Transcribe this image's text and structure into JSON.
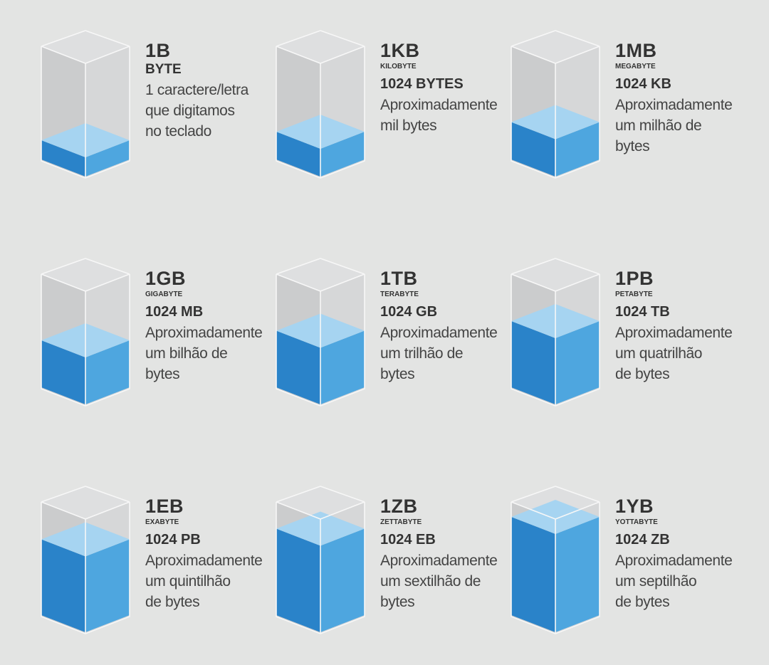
{
  "colors": {
    "glass_side": "#cbcccd",
    "glass_top": "#dedfe0",
    "glass_edge": "#f7f7f7",
    "fill_top": "#a6d4f1",
    "fill_left": "#2a83c9",
    "fill_right": "#4ea6df"
  },
  "units": [
    {
      "unit": "1B",
      "name": "BYTE",
      "equiv": "",
      "desc": [
        "1 caractere/letra",
        "que digitamos",
        "no teclado"
      ],
      "fill_level": 0.06
    },
    {
      "unit": "1KB",
      "name": "KILOBYTE",
      "equiv": "1024 BYTES",
      "desc": [
        "Aproximadamente",
        "mil bytes"
      ],
      "fill_level": 0.14
    },
    {
      "unit": "1MB",
      "name": "MEGABYTE",
      "equiv": "1024 KB",
      "desc": [
        "Aproximadamente",
        "um milhão de",
        "bytes"
      ],
      "fill_level": 0.23
    },
    {
      "unit": "1GB",
      "name": "GIGABYTE",
      "equiv": "1024 MB",
      "desc": [
        "Aproximadamente",
        "um bilhão de",
        "bytes"
      ],
      "fill_level": 0.32
    },
    {
      "unit": "1TB",
      "name": "TERABYTE",
      "equiv": "1024 GB",
      "desc": [
        "Aproximadamente",
        "um trilhão de",
        "bytes"
      ],
      "fill_level": 0.41
    },
    {
      "unit": "1PB",
      "name": "PETABYTE",
      "equiv": "1024 TB",
      "desc": [
        "Aproximadamente",
        "um quatrilhão",
        "de bytes"
      ],
      "fill_level": 0.5
    },
    {
      "unit": "1EB",
      "name": "EXABYTE",
      "equiv": "1024 PB",
      "desc": [
        "Aproximadamente",
        "um quintilhão",
        "de bytes"
      ],
      "fill_level": 0.59
    },
    {
      "unit": "1ZB",
      "name": "ZETTABYTE",
      "equiv": "1024 EB",
      "desc": [
        "Aproximadamente",
        "um sextilhão de",
        "bytes"
      ],
      "fill_level": 0.69
    },
    {
      "unit": "1YB",
      "name": "YOTTABYTE",
      "equiv": "1024 ZB",
      "desc": [
        "Aproximadamente",
        "um septilhão",
        "de bytes"
      ],
      "fill_level": 0.8
    }
  ]
}
